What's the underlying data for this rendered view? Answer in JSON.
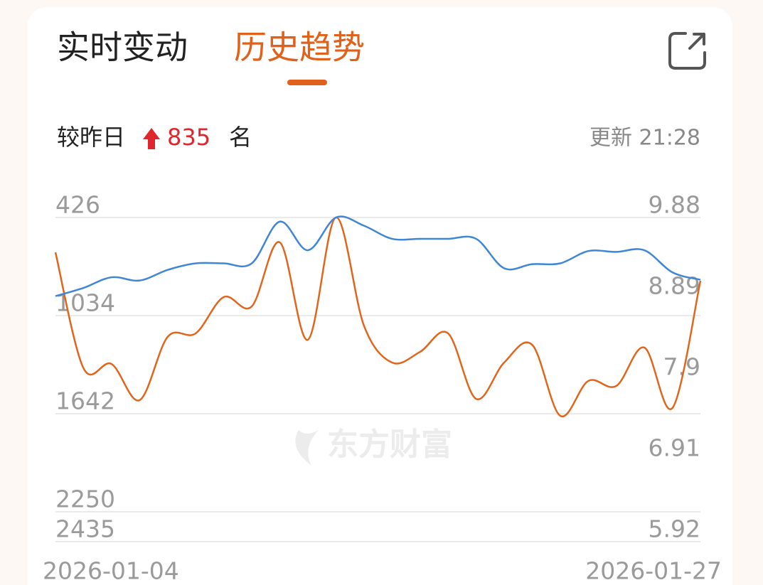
{
  "tabs": [
    "实时变动",
    "历史趋势"
  ],
  "change": {
    "label": "较昨日",
    "value": 835,
    "unit": "名"
  },
  "update": "更新 21:28",
  "watermark": "东方财富",
  "chart_data": {
    "type": "line",
    "categories": [
      "2026-01-04",
      null,
      null,
      null,
      null,
      null,
      null,
      null,
      null,
      null,
      null,
      null,
      null,
      null,
      null,
      null,
      null,
      null,
      null,
      null,
      null,
      null,
      null,
      "2026-01-27"
    ],
    "series": [
      {
        "color": "#e0661e",
        "values": [
          642,
          1360,
          1334,
          1558,
          1166,
          1144,
          919,
          977,
          580,
          1184,
          426,
          1096,
          1325,
          1259,
          1144,
          1550,
          1325,
          1215,
          1655,
          1439,
          1470,
          1232,
          1607,
          818
        ]
      },
      {
        "color": "#3f86d6",
        "axis": "y2",
        "values": [
          8.92,
          9.02,
          9.15,
          9.11,
          9.24,
          9.32,
          9.32,
          9.32,
          9.83,
          9.48,
          9.88,
          9.78,
          9.62,
          9.62,
          9.62,
          9.62,
          9.26,
          9.31,
          9.32,
          9.47,
          9.46,
          9.48,
          9.21,
          9.12
        ]
      }
    ],
    "ylim": [
      2435,
      426
    ],
    "yticks": [
      426,
      1034,
      1642,
      2250,
      2435
    ],
    "y2lim": [
      5.92,
      9.88
    ],
    "y2ticks": [
      9.88,
      8.89,
      7.9,
      6.91,
      5.92
    ],
    "grid": true
  }
}
